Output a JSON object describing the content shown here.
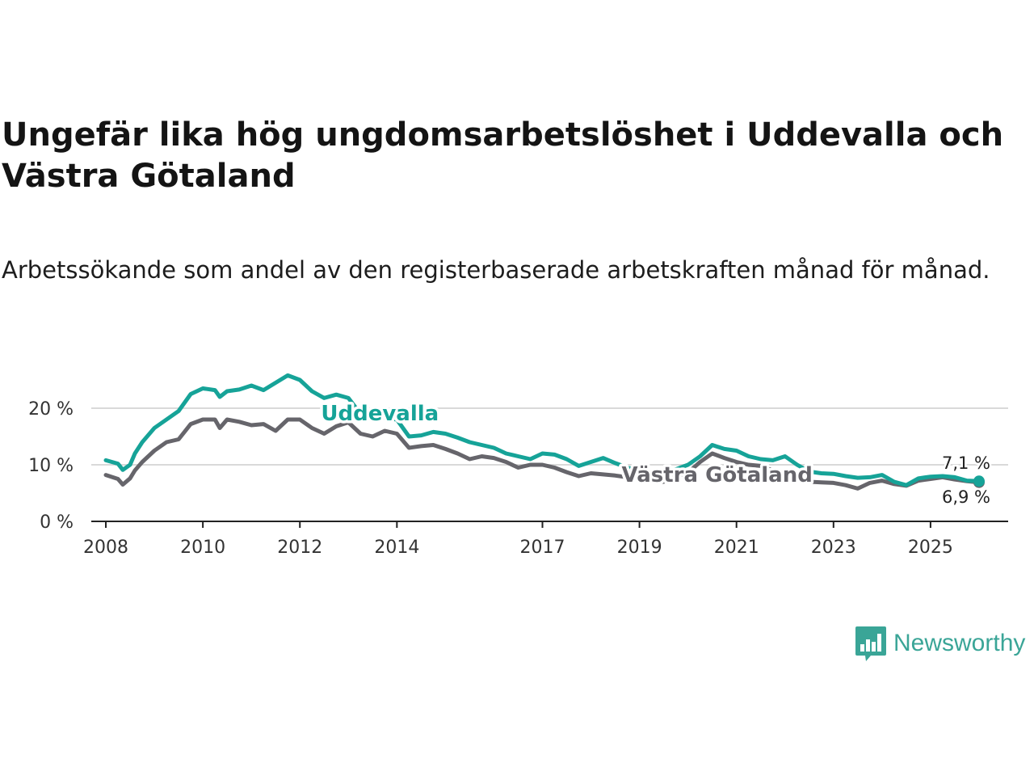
{
  "title": "Ungefär lika hög ungdomsarbetslöshet i Uddevalla och Västra Götaland",
  "subtitle": "Arbetssökande som andel av den registerbaserade arbetskraften månad för månad.",
  "brand": {
    "name": "Newsworthy",
    "color": "#3aa597",
    "icon": "bar-chart-speech-bubble-icon"
  },
  "colors": {
    "uddevalla": "#16a398",
    "vastra": "#66656b",
    "grid": "#d9d9d9",
    "axis": "#222222"
  },
  "chart_data": {
    "type": "line",
    "title": "Ungefär lika hög ungdomsarbetslöshet i Uddevalla och Västra Götaland",
    "xlabel": "",
    "ylabel": "",
    "xlim": [
      2007.7,
      2026.6
    ],
    "ylim": [
      0,
      20
    ],
    "y_ticks": [
      0,
      10,
      20
    ],
    "y_tick_labels": [
      "0 %",
      "10 %",
      "20 %"
    ],
    "x_ticks": [
      2008,
      2010,
      2012,
      2014,
      2017,
      2019,
      2021,
      2023,
      2025
    ],
    "x_tick_labels": [
      "2008",
      "2010",
      "2012",
      "2014",
      "2017",
      "2019",
      "2021",
      "2023",
      "2025"
    ],
    "grid": true,
    "series": [
      {
        "name": "Uddevalla",
        "label": "Uddevalla",
        "end_label": "7,1 %",
        "x": [
          2008.0,
          2008.25,
          2008.35,
          2008.5,
          2008.6,
          2008.75,
          2009.0,
          2009.25,
          2009.5,
          2009.75,
          2010.0,
          2010.25,
          2010.35,
          2010.5,
          2010.75,
          2011.0,
          2011.25,
          2011.5,
          2011.75,
          2012.0,
          2012.25,
          2012.5,
          2012.75,
          2013.0,
          2013.25,
          2013.5,
          2013.75,
          2014.0,
          2014.25,
          2014.5,
          2014.75,
          2015.0,
          2015.25,
          2015.5,
          2015.75,
          2016.0,
          2016.25,
          2016.5,
          2016.75,
          2017.0,
          2017.25,
          2017.5,
          2017.75,
          2018.0,
          2018.25,
          2018.5,
          2018.75,
          2019.0,
          2019.25,
          2019.5,
          2019.75,
          2020.0,
          2020.25,
          2020.5,
          2020.75,
          2021.0,
          2021.25,
          2021.5,
          2021.75,
          2022.0,
          2022.25,
          2022.5,
          2022.75,
          2023.0,
          2023.25,
          2023.5,
          2023.75,
          2024.0,
          2024.25,
          2024.5,
          2024.75,
          2025.0,
          2025.25,
          2025.5,
          2025.75,
          2026.0
        ],
        "y": [
          10.8,
          10.2,
          9.1,
          10.0,
          12.0,
          14.0,
          16.5,
          18.0,
          19.5,
          22.5,
          23.5,
          23.2,
          22.0,
          23.0,
          23.3,
          24.0,
          23.2,
          24.5,
          25.8,
          25.0,
          23.0,
          21.8,
          22.4,
          21.8,
          19.0,
          19.5,
          18.3,
          18.0,
          15.0,
          15.2,
          15.8,
          15.5,
          14.8,
          14.0,
          13.5,
          13.0,
          12.0,
          11.5,
          11.0,
          12.0,
          11.8,
          11.0,
          9.8,
          10.5,
          11.2,
          10.3,
          9.5,
          9.0,
          8.5,
          8.0,
          9.2,
          10.0,
          11.5,
          13.5,
          12.8,
          12.5,
          11.5,
          11.0,
          10.8,
          11.5,
          10.0,
          8.8,
          8.5,
          8.4,
          8.0,
          7.7,
          7.8,
          8.2,
          7.0,
          6.4,
          7.6,
          7.9,
          8.0,
          7.8,
          7.2,
          7.1
        ]
      },
      {
        "name": "Västra Götaland",
        "label": "Västra Götaland",
        "end_label": "6,9 %",
        "x": [
          2008.0,
          2008.25,
          2008.35,
          2008.5,
          2008.6,
          2008.75,
          2009.0,
          2009.25,
          2009.5,
          2009.75,
          2010.0,
          2010.25,
          2010.35,
          2010.5,
          2010.75,
          2011.0,
          2011.25,
          2011.5,
          2011.75,
          2012.0,
          2012.25,
          2012.5,
          2012.75,
          2013.0,
          2013.25,
          2013.5,
          2013.75,
          2014.0,
          2014.25,
          2014.5,
          2014.75,
          2015.0,
          2015.25,
          2015.5,
          2015.75,
          2016.0,
          2016.25,
          2016.5,
          2016.75,
          2017.0,
          2017.25,
          2017.5,
          2017.75,
          2018.0,
          2018.25,
          2018.5,
          2018.75,
          2019.0,
          2019.25,
          2019.5,
          2019.75,
          2020.0,
          2020.25,
          2020.5,
          2020.75,
          2021.0,
          2021.25,
          2021.5,
          2021.75,
          2022.0,
          2022.25,
          2022.5,
          2022.75,
          2023.0,
          2023.25,
          2023.5,
          2023.75,
          2024.0,
          2024.25,
          2024.5,
          2024.75,
          2025.0,
          2025.25,
          2025.5,
          2025.75,
          2026.0
        ],
        "y": [
          8.2,
          7.5,
          6.5,
          7.6,
          9.0,
          10.5,
          12.5,
          14.0,
          14.5,
          17.2,
          18.0,
          18.0,
          16.5,
          18.0,
          17.6,
          17.0,
          17.2,
          16.0,
          18.0,
          18.0,
          16.5,
          15.5,
          16.8,
          17.5,
          15.5,
          15.0,
          16.0,
          15.5,
          13.0,
          13.3,
          13.5,
          12.8,
          12.0,
          11.0,
          11.5,
          11.2,
          10.5,
          9.5,
          10.0,
          10.0,
          9.5,
          8.7,
          8.0,
          8.5,
          8.3,
          8.1,
          7.8,
          7.5,
          7.0,
          7.0,
          8.0,
          8.6,
          10.5,
          12.0,
          11.2,
          10.5,
          10.0,
          9.8,
          9.0,
          8.5,
          7.3,
          7.0,
          6.9,
          6.8,
          6.4,
          5.8,
          6.8,
          7.2,
          6.6,
          6.3,
          7.2,
          7.5,
          7.8,
          7.4,
          7.1,
          6.9
        ]
      }
    ]
  }
}
